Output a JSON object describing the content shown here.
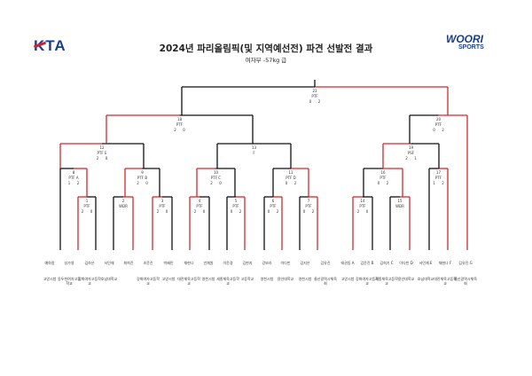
{
  "logos": {
    "left_text": "KTA",
    "right_text_1": "WOORI",
    "right_text_2": "SPORTS"
  },
  "title": "2024년 파리올림픽(및 지역예선전) 파견 선발전 결과",
  "subtitle": "여자부 -57kg 급",
  "matches": [
    {
      "no": "23",
      "ref": "PTF",
      "score_a": "0",
      "score_b": "2"
    },
    {
      "no": "18",
      "ref": "PTF",
      "score_a": "2",
      "score_b": "0"
    },
    {
      "no": "20",
      "ref": "PTF",
      "score_a": "0",
      "score_b": "2"
    },
    {
      "no": "12",
      "ref": "PTF E",
      "score_a": "2",
      "score_b": "0"
    },
    {
      "no": "13",
      "ref": "F",
      "score_a": "",
      "score_b": ""
    },
    {
      "no": "19",
      "ref": "PSF",
      "score_a": "2",
      "score_b": "1"
    },
    {
      "no": "8",
      "ref": "PTF A",
      "score_a": "1",
      "score_b": "2"
    },
    {
      "no": "9",
      "ref": "PTF B",
      "score_a": "2",
      "score_b": "0"
    },
    {
      "no": "10",
      "ref": "PTF C",
      "score_a": "2",
      "score_b": "0"
    },
    {
      "no": "11",
      "ref": "PTF D",
      "score_a": "0",
      "score_b": "2"
    },
    {
      "no": "16",
      "ref": "PTF",
      "score_a": "0",
      "score_b": "2"
    },
    {
      "no": "17",
      "ref": "PTF",
      "score_a": "1",
      "score_b": "2"
    },
    {
      "no": "1",
      "ref": "PTF",
      "score_a": "2",
      "score_b": "0"
    },
    {
      "no": "2",
      "ref": "WDR",
      "score_a": "",
      "score_b": ""
    },
    {
      "no": "3",
      "ref": "PTF",
      "score_a": "2",
      "score_b": "0"
    },
    {
      "no": "4",
      "ref": "PTF",
      "score_a": "2",
      "score_b": "0"
    },
    {
      "no": "5",
      "ref": "PTF",
      "score_a": "0",
      "score_b": "2"
    },
    {
      "no": "6",
      "ref": "PTF",
      "score_a": "0",
      "score_b": "2"
    },
    {
      "no": "7",
      "ref": "PTF",
      "score_a": "0",
      "score_b": "2"
    },
    {
      "no": "14",
      "ref": "PTF",
      "score_a": "2",
      "score_b": "0"
    },
    {
      "no": "15",
      "ref": "WDR",
      "score_a": "",
      "score_b": ""
    }
  ],
  "players": [
    {
      "name": "예하람",
      "team": "고양시청"
    },
    {
      "name": "성가영",
      "team": "동두천여자고등학교"
    },
    {
      "name": "김하은",
      "team": "강화여자고등학교"
    },
    {
      "name": "서민재",
      "team": "호남대학교"
    },
    {
      "name": "최희진",
      "team": ""
    },
    {
      "name": "조윤진",
      "team": "강화여자고등학교"
    },
    {
      "name": "박혜민",
      "team": "고양시청"
    },
    {
      "name": "채현나",
      "team": "대전체육고등학교"
    },
    {
      "name": "안채원",
      "team": "영천시청"
    },
    {
      "name": "이윤경",
      "team": "세종체육고등학교"
    },
    {
      "name": "김현지",
      "team": "고등학교"
    },
    {
      "name": "강보라",
      "team": "영천시청"
    },
    {
      "name": "이다빈",
      "team": "용인대학교"
    },
    {
      "name": "김지은",
      "team": "영천시청"
    },
    {
      "name": "김유진",
      "team": "울산광역시체육회"
    },
    {
      "name": "태권동 A",
      "team": "고양시청"
    },
    {
      "name": "김윤진 B",
      "team": "강화여자고등학교"
    },
    {
      "name": "김희기 C",
      "team": "세종체육고등학교"
    },
    {
      "name": "이다빈 D",
      "team": "용인대학교"
    },
    {
      "name": "서민재 E",
      "team": "호남대학교"
    },
    {
      "name": "채현나 F",
      "team": "대전체육고등학교"
    },
    {
      "name": "김유진 G",
      "team": "울산광역시체육회"
    }
  ],
  "colors": {
    "winner_line": "#d9262c",
    "line": "#111111",
    "brand_blue": "#1c3f8c"
  }
}
